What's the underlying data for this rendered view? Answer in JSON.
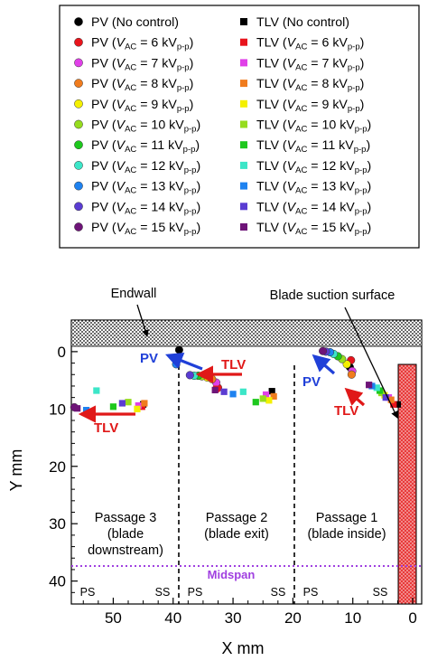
{
  "legend": {
    "pv_no_control": "PV (No control)",
    "tlv_no_control": "TLV (No control)",
    "pv_prefix": "PV (",
    "tlv_prefix": "TLV (",
    "v_symbol": "V",
    "v_sub": "AC",
    "unit": "kV",
    "unit_sub": "p-p",
    "close": ")",
    "entries": [
      {
        "voltage": "6",
        "color": "#e8141c"
      },
      {
        "voltage": "7",
        "color": "#e040e8"
      },
      {
        "voltage": "8",
        "color": "#f07c1e"
      },
      {
        "voltage": "9",
        "color": "#f4f000"
      },
      {
        "voltage": "10",
        "color": "#96dc1e"
      },
      {
        "voltage": "11",
        "color": "#1ec81e"
      },
      {
        "voltage": "12",
        "color": "#3ce6c8"
      },
      {
        "voltage": "13",
        "color": "#1e82f0"
      },
      {
        "voltage": "14",
        "color": "#5a3cd2"
      },
      {
        "voltage": "15",
        "color": "#6e1478"
      }
    ]
  },
  "labels": {
    "endwall": "Endwall",
    "blade_surface": "Blade suction surface",
    "passage3": [
      "Passage 3",
      "(blade",
      "downstream)"
    ],
    "passage2": [
      "Passage 2",
      "(blade exit)"
    ],
    "passage1": [
      "Passage 1",
      "(blade inside)"
    ],
    "midspan": "Midspan",
    "ps": "PS",
    "ss": "SS",
    "pv": "PV",
    "tlv": "TLV"
  },
  "colors": {
    "no_control": "#000000",
    "arrow_pv": "#2040d8",
    "arrow_tlv": "#e01818",
    "midspan": "#a040e0",
    "blade": "#e83a3a"
  },
  "chart_data": {
    "type": "scatter",
    "xlabel": "X mm",
    "ylabel": "Y mm",
    "xlim": [
      57,
      -1.5
    ],
    "ylim": [
      44,
      -5.5
    ],
    "x_ticks": [
      50,
      40,
      30,
      20,
      10,
      0
    ],
    "y_ticks": [
      0,
      10,
      20,
      30,
      40
    ],
    "series": [
      {
        "name": "PV (No control)",
        "voltage": null,
        "marker": "circle",
        "points": [
          [
            39,
            -0.3
          ],
          [
            10.5,
            2.7
          ]
        ]
      },
      {
        "name": "TLV (No control)",
        "voltage": null,
        "marker": "square",
        "points": [
          [
            45,
            9.2
          ],
          [
            23.5,
            6.9
          ],
          [
            2.5,
            9.2
          ]
        ]
      },
      {
        "voltage": 6,
        "marker": "circle",
        "points": [
          [
            32.5,
            6.3
          ],
          [
            10.3,
            1.5
          ]
        ]
      },
      {
        "voltage": 7,
        "marker": "circle",
        "points": [
          [
            32.8,
            5.4
          ],
          [
            10.1,
            3.4
          ]
        ]
      },
      {
        "voltage": 8,
        "marker": "circle",
        "points": [
          [
            33.5,
            4.8
          ],
          [
            10.2,
            4.0
          ]
        ]
      },
      {
        "voltage": 9,
        "marker": "circle",
        "points": [
          [
            34.3,
            4.5
          ],
          [
            11.0,
            2.2
          ]
        ]
      },
      {
        "voltage": 10,
        "marker": "circle",
        "points": [
          [
            35.2,
            4.3
          ],
          [
            11.8,
            1.3
          ]
        ]
      },
      {
        "voltage": 11,
        "marker": "circle",
        "points": [
          [
            35.8,
            4.2
          ],
          [
            12.5,
            0.8
          ]
        ]
      },
      {
        "voltage": 12,
        "marker": "circle",
        "points": [
          [
            36.5,
            4.2
          ],
          [
            13.2,
            0.4
          ]
        ]
      },
      {
        "voltage": 13,
        "marker": "circle",
        "points": [
          [
            39.5,
            2.2
          ],
          [
            13.8,
            0.1
          ]
        ]
      },
      {
        "voltage": 14,
        "marker": "circle",
        "points": [
          [
            37.2,
            4.1
          ],
          [
            14.5,
            0.0
          ]
        ]
      },
      {
        "voltage": 15,
        "marker": "circle",
        "points": [
          [
            56.5,
            9.7
          ],
          [
            15.0,
            -0.1
          ]
        ]
      },
      {
        "voltage": 6,
        "marker": "square",
        "points": [
          [
            45.2,
            9.6
          ],
          [
            32.8,
            6.5
          ],
          [
            3.2,
            9.2
          ]
        ]
      },
      {
        "voltage": 7,
        "marker": "square",
        "points": [
          [
            45.8,
            9.4
          ],
          [
            24.5,
            7.5
          ],
          [
            4.0,
            8.0
          ]
        ]
      },
      {
        "voltage": 8,
        "marker": "square",
        "points": [
          [
            44.8,
            9.0
          ],
          [
            23.2,
            7.8
          ],
          [
            3.6,
            8.4
          ]
        ]
      },
      {
        "voltage": 9,
        "marker": "square",
        "points": [
          [
            46.0,
            10.0
          ],
          [
            24.0,
            8.5
          ],
          [
            4.7,
            7.6
          ]
        ]
      },
      {
        "voltage": 10,
        "marker": "square",
        "points": [
          [
            47.5,
            8.8
          ],
          [
            25.0,
            8.2
          ],
          [
            5.2,
            7.2
          ]
        ]
      },
      {
        "voltage": 11,
        "marker": "square",
        "points": [
          [
            50.0,
            9.6
          ],
          [
            26.2,
            8.8
          ],
          [
            5.5,
            6.8
          ]
        ]
      },
      {
        "voltage": 12,
        "marker": "square",
        "points": [
          [
            52.8,
            6.8
          ],
          [
            28.3,
            7.0
          ],
          [
            6.0,
            6.3
          ]
        ]
      },
      {
        "voltage": 13,
        "marker": "square",
        "points": [
          [
            54.5,
            10.2
          ],
          [
            30.0,
            7.4
          ],
          [
            6.8,
            6.0
          ]
        ]
      },
      {
        "voltage": 14,
        "marker": "square",
        "points": [
          [
            48.5,
            9.0
          ],
          [
            31.5,
            7.0
          ],
          [
            4.5,
            8.0
          ]
        ]
      },
      {
        "voltage": 15,
        "marker": "square",
        "points": [
          [
            56.0,
            9.9
          ],
          [
            33.0,
            6.7
          ],
          [
            7.3,
            5.8
          ]
        ]
      }
    ]
  }
}
